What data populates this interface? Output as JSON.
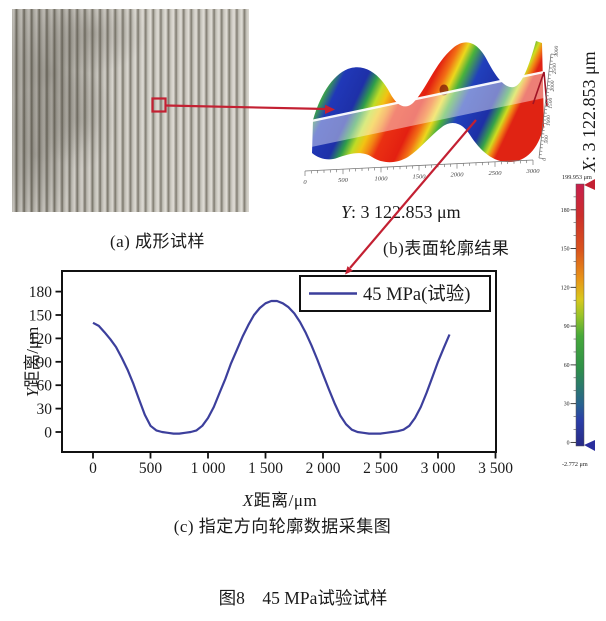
{
  "figure": {
    "caption": "图8　45 MPa试验试样",
    "panel_a": {
      "caption": "(a) 成形试样"
    },
    "panel_b": {
      "caption": "(b)表面轮廓结果",
      "y_annotation": {
        "var": "Y",
        "rest": ": 3 122.853 μm"
      },
      "x_annotation": {
        "var": "X",
        "rest": ": 3 122.853 μm"
      },
      "axis_ticks": [
        "0",
        "500",
        "1000",
        "1500",
        "2000",
        "2500",
        "3000"
      ],
      "colorbar": {
        "top": "199.953 μm",
        "bottom": "-2.772 μm",
        "ticks": [
          "180",
          "150",
          "120",
          "90",
          "60",
          "30",
          "0"
        ],
        "tick_values": [
          180,
          150,
          120,
          90,
          60,
          30,
          0
        ],
        "max": 199.953,
        "min": -2.772
      }
    },
    "panel_c": {
      "caption": "(c) 指定方向轮廓数据采集图",
      "xlabel": {
        "var": "X",
        "rest": "距离/μm"
      },
      "ylabel": {
        "var": "Y",
        "rest": "距离/μm"
      }
    }
  },
  "colors": {
    "accent_red": "#c32032",
    "curve_blue": "#3c3f9c"
  },
  "chart_data": {
    "type": "line",
    "title": "(c) 指定方向轮廓数据采集图",
    "xlabel": "X距离/μm",
    "ylabel": "Y距离/μm",
    "xlim": [
      -270,
      3600
    ],
    "ylim": [
      -18,
      195
    ],
    "grid": false,
    "legend_position": "top-right",
    "x_ticks": [
      "0",
      "500",
      "1 000",
      "1 500",
      "2 000",
      "2 500",
      "3 000",
      "3 500"
    ],
    "x_tick_values": [
      0,
      500,
      1000,
      1500,
      2000,
      2500,
      3000,
      3500
    ],
    "y_ticks": [
      0,
      30,
      60,
      90,
      120,
      150,
      180
    ],
    "series": [
      {
        "name": "45 MPa(试验)",
        "color": "#3c3f9c",
        "points": [
          [
            0,
            140
          ],
          [
            50,
            136
          ],
          [
            100,
            128
          ],
          [
            150,
            119
          ],
          [
            200,
            109
          ],
          [
            250,
            95
          ],
          [
            300,
            80
          ],
          [
            350,
            62
          ],
          [
            400,
            42
          ],
          [
            450,
            22
          ],
          [
            500,
            8
          ],
          [
            550,
            2
          ],
          [
            600,
            0
          ],
          [
            650,
            -1
          ],
          [
            700,
            -2
          ],
          [
            750,
            -2
          ],
          [
            800,
            -1
          ],
          [
            850,
            0
          ],
          [
            900,
            2
          ],
          [
            950,
            8
          ],
          [
            1000,
            18
          ],
          [
            1050,
            32
          ],
          [
            1100,
            50
          ],
          [
            1150,
            68
          ],
          [
            1200,
            88
          ],
          [
            1250,
            105
          ],
          [
            1300,
            122
          ],
          [
            1350,
            137
          ],
          [
            1400,
            150
          ],
          [
            1450,
            159
          ],
          [
            1500,
            165
          ],
          [
            1550,
            168
          ],
          [
            1600,
            168
          ],
          [
            1650,
            165
          ],
          [
            1700,
            160
          ],
          [
            1750,
            152
          ],
          [
            1800,
            141
          ],
          [
            1850,
            127
          ],
          [
            1900,
            111
          ],
          [
            1950,
            93
          ],
          [
            2000,
            74
          ],
          [
            2050,
            55
          ],
          [
            2100,
            37
          ],
          [
            2150,
            21
          ],
          [
            2200,
            10
          ],
          [
            2250,
            3
          ],
          [
            2300,
            0
          ],
          [
            2350,
            -1
          ],
          [
            2400,
            -2
          ],
          [
            2450,
            -2
          ],
          [
            2500,
            -2
          ],
          [
            2550,
            -1
          ],
          [
            2600,
            0
          ],
          [
            2650,
            1
          ],
          [
            2700,
            3
          ],
          [
            2750,
            8
          ],
          [
            2800,
            18
          ],
          [
            2850,
            32
          ],
          [
            2900,
            50
          ],
          [
            2950,
            70
          ],
          [
            3000,
            90
          ],
          [
            3050,
            108
          ],
          [
            3100,
            125
          ]
        ]
      }
    ]
  }
}
